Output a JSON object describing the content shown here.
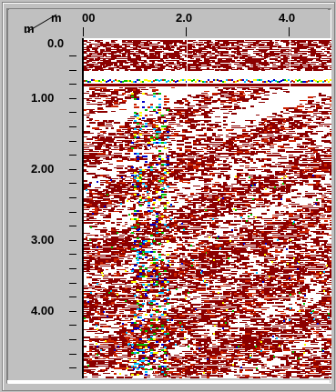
{
  "window": {
    "corner_top_label": "m",
    "corner_left_label": "m"
  },
  "x_axis": {
    "unit": "m",
    "tick_labels": [
      "00",
      "2.0",
      "4.0"
    ]
  },
  "y_axis": {
    "unit": "m",
    "tick_labels": [
      "0.0",
      "1.00",
      "2.00",
      "3.00",
      "4.00"
    ]
  },
  "colors": {
    "background": "#c0c0c0",
    "radar_dark": "#8b0000",
    "radar_red": "#cc2200",
    "radar_yellow": "#ffff00",
    "radar_green": "#00c000",
    "radar_cyan": "#00c0ff",
    "radar_blue": "#0000cc",
    "radar_white": "#ffffff"
  }
}
